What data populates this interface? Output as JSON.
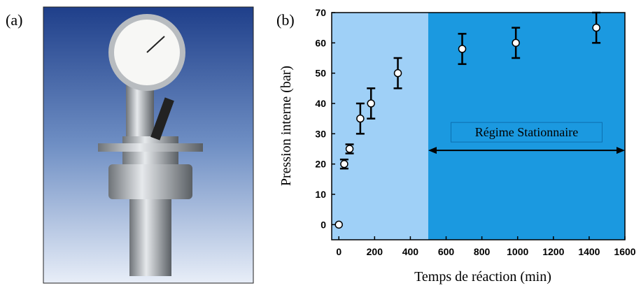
{
  "panels": {
    "a": "(a)",
    "b": "(b)"
  },
  "chart_data": {
    "type": "scatter",
    "x_label": "Temps de réaction (min)",
    "y_label": "Pression interne (bar)",
    "x": [
      0,
      30,
      60,
      120,
      180,
      330,
      690,
      990,
      1440
    ],
    "series": [
      {
        "color": "#ffffff",
        "values": [
          0,
          20,
          25,
          35,
          40,
          50,
          58,
          60,
          65
        ],
        "errors": [
          0,
          1.5,
          1.5,
          5,
          5,
          5,
          5,
          5,
          5
        ]
      }
    ],
    "xlim": [
      -40,
      1600
    ],
    "xticks": [
      0,
      200,
      400,
      600,
      800,
      1000,
      1200,
      1400,
      1600
    ],
    "ylim": [
      -5,
      70
    ],
    "yticks": [
      0,
      10,
      20,
      30,
      40,
      50,
      60,
      70
    ],
    "regions": [
      {
        "from": -40,
        "to": 500,
        "color": "#9fd0f7"
      },
      {
        "from": 500,
        "to": 1600,
        "color": "#1b99e0"
      }
    ],
    "annotation": {
      "text": "Régime Stationnaire",
      "x_from": 500,
      "x_to": 1600,
      "y": 24.5
    }
  }
}
